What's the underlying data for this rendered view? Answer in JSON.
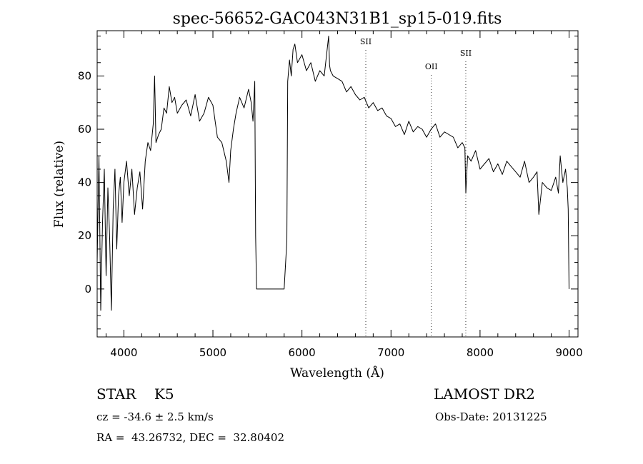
{
  "chart_data": {
    "type": "line",
    "title": "spec-56652-GAC043N31B1_sp15-019.fits",
    "xlabel": "Wavelength (Å)",
    "ylabel": "Flux (relative)",
    "xlim": [
      3700,
      9100
    ],
    "ylim": [
      -18,
      97
    ],
    "xticks": [
      4000,
      5000,
      6000,
      7000,
      8000,
      9000
    ],
    "yticks": [
      0,
      20,
      40,
      60,
      80
    ],
    "xtick_labels": [
      "4000",
      "5000",
      "6000",
      "7000",
      "8000",
      "9000"
    ],
    "ytick_labels": [
      "0",
      "20",
      "40",
      "60",
      "80"
    ],
    "grid": false,
    "series": [
      {
        "x": [
          3700,
          3720,
          3740,
          3760,
          3780,
          3800,
          3820,
          3840,
          3860,
          3880,
          3900,
          3920,
          3940,
          3960,
          3980,
          4000,
          4030,
          4060,
          4090,
          4120,
          4150,
          4180,
          4210,
          4240,
          4270,
          4300,
          4330,
          4345,
          4360,
          4390,
          4420,
          4450,
          4480,
          4510,
          4540,
          4570,
          4600,
          4650,
          4700,
          4750,
          4800,
          4850,
          4900,
          4950,
          5000,
          5050,
          5100,
          5150,
          5180,
          5200,
          5230,
          5260,
          5300,
          5350,
          5400,
          5430,
          5450,
          5470,
          5480,
          5490,
          5500,
          5600,
          5700,
          5800,
          5830,
          5840,
          5860,
          5880,
          5900,
          5920,
          5950,
          6000,
          6050,
          6100,
          6150,
          6200,
          6250,
          6300,
          6310,
          6320,
          6350,
          6400,
          6450,
          6500,
          6550,
          6600,
          6650,
          6700,
          6750,
          6800,
          6850,
          6900,
          6950,
          7000,
          7050,
          7100,
          7150,
          7200,
          7250,
          7300,
          7350,
          7400,
          7450,
          7500,
          7550,
          7600,
          7650,
          7700,
          7750,
          7800,
          7830,
          7840,
          7860,
          7900,
          7950,
          8000,
          8050,
          8100,
          8150,
          8200,
          8250,
          8300,
          8350,
          8400,
          8450,
          8500,
          8550,
          8600,
          8640,
          8660,
          8700,
          8750,
          8800,
          8850,
          8880,
          8900,
          8930,
          8960,
          8980,
          8990,
          9000
        ],
        "y": [
          10,
          50,
          -8,
          25,
          45,
          5,
          38,
          20,
          -8,
          30,
          45,
          15,
          35,
          42,
          25,
          40,
          48,
          35,
          45,
          28,
          38,
          44,
          30,
          48,
          55,
          52,
          62,
          80,
          55,
          58,
          60,
          68,
          66,
          76,
          70,
          72,
          66,
          69,
          71,
          65,
          73,
          63,
          66,
          72,
          69,
          57,
          55,
          48,
          40,
          52,
          60,
          66,
          72,
          68,
          75,
          70,
          63,
          78,
          20,
          0,
          0,
          0,
          0,
          0,
          18,
          78,
          86,
          80,
          90,
          92,
          85,
          88,
          82,
          85,
          78,
          82,
          80,
          95,
          84,
          82,
          80,
          79,
          78,
          74,
          76,
          73,
          71,
          72,
          68,
          70,
          67,
          68,
          65,
          64,
          61,
          62,
          58,
          63,
          59,
          61,
          60,
          57,
          60,
          62,
          57,
          59,
          58,
          57,
          53,
          55,
          53,
          36,
          50,
          48,
          52,
          45,
          47,
          49,
          44,
          47,
          43,
          48,
          46,
          44,
          42,
          48,
          40,
          42,
          44,
          28,
          40,
          38,
          37,
          42,
          36,
          50,
          40,
          45,
          38,
          30,
          0
        ]
      }
    ],
    "annotations": [
      {
        "text": "SII",
        "x": 6717
      },
      {
        "text": "OII",
        "x": 7453
      },
      {
        "text": "SII",
        "x": 7840
      }
    ]
  },
  "info": {
    "object_line": "STAR    K5",
    "survey": "LAMOST DR2",
    "cz_line": "cz = -34.6 ± 2.5 km/s",
    "obs_date": "Obs-Date: 20131225",
    "coords": "RA =  43.26732, DEC =  32.80402"
  }
}
